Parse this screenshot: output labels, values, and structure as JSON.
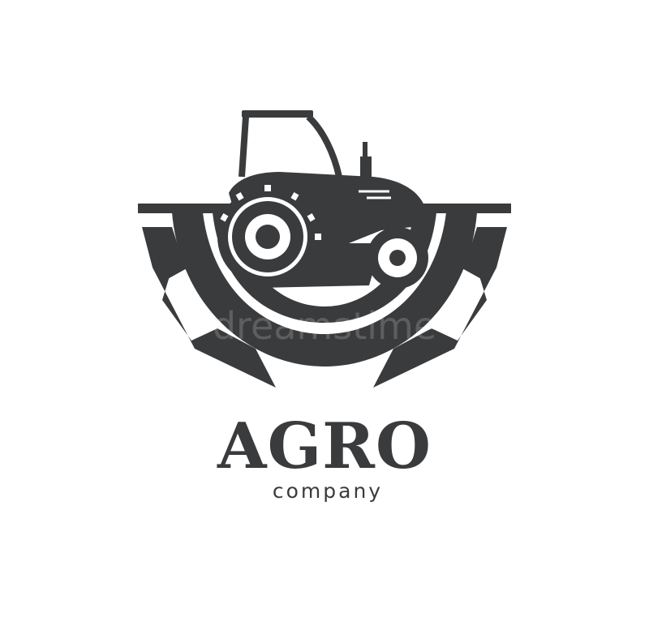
{
  "logo": {
    "name": "AGRO",
    "tagline": "company",
    "watermark_text": "dreamstime",
    "icons": [
      "gear-icon",
      "tractor-icon"
    ],
    "colors": {
      "mark": "#3a3b3d",
      "background": "#ffffff"
    }
  }
}
